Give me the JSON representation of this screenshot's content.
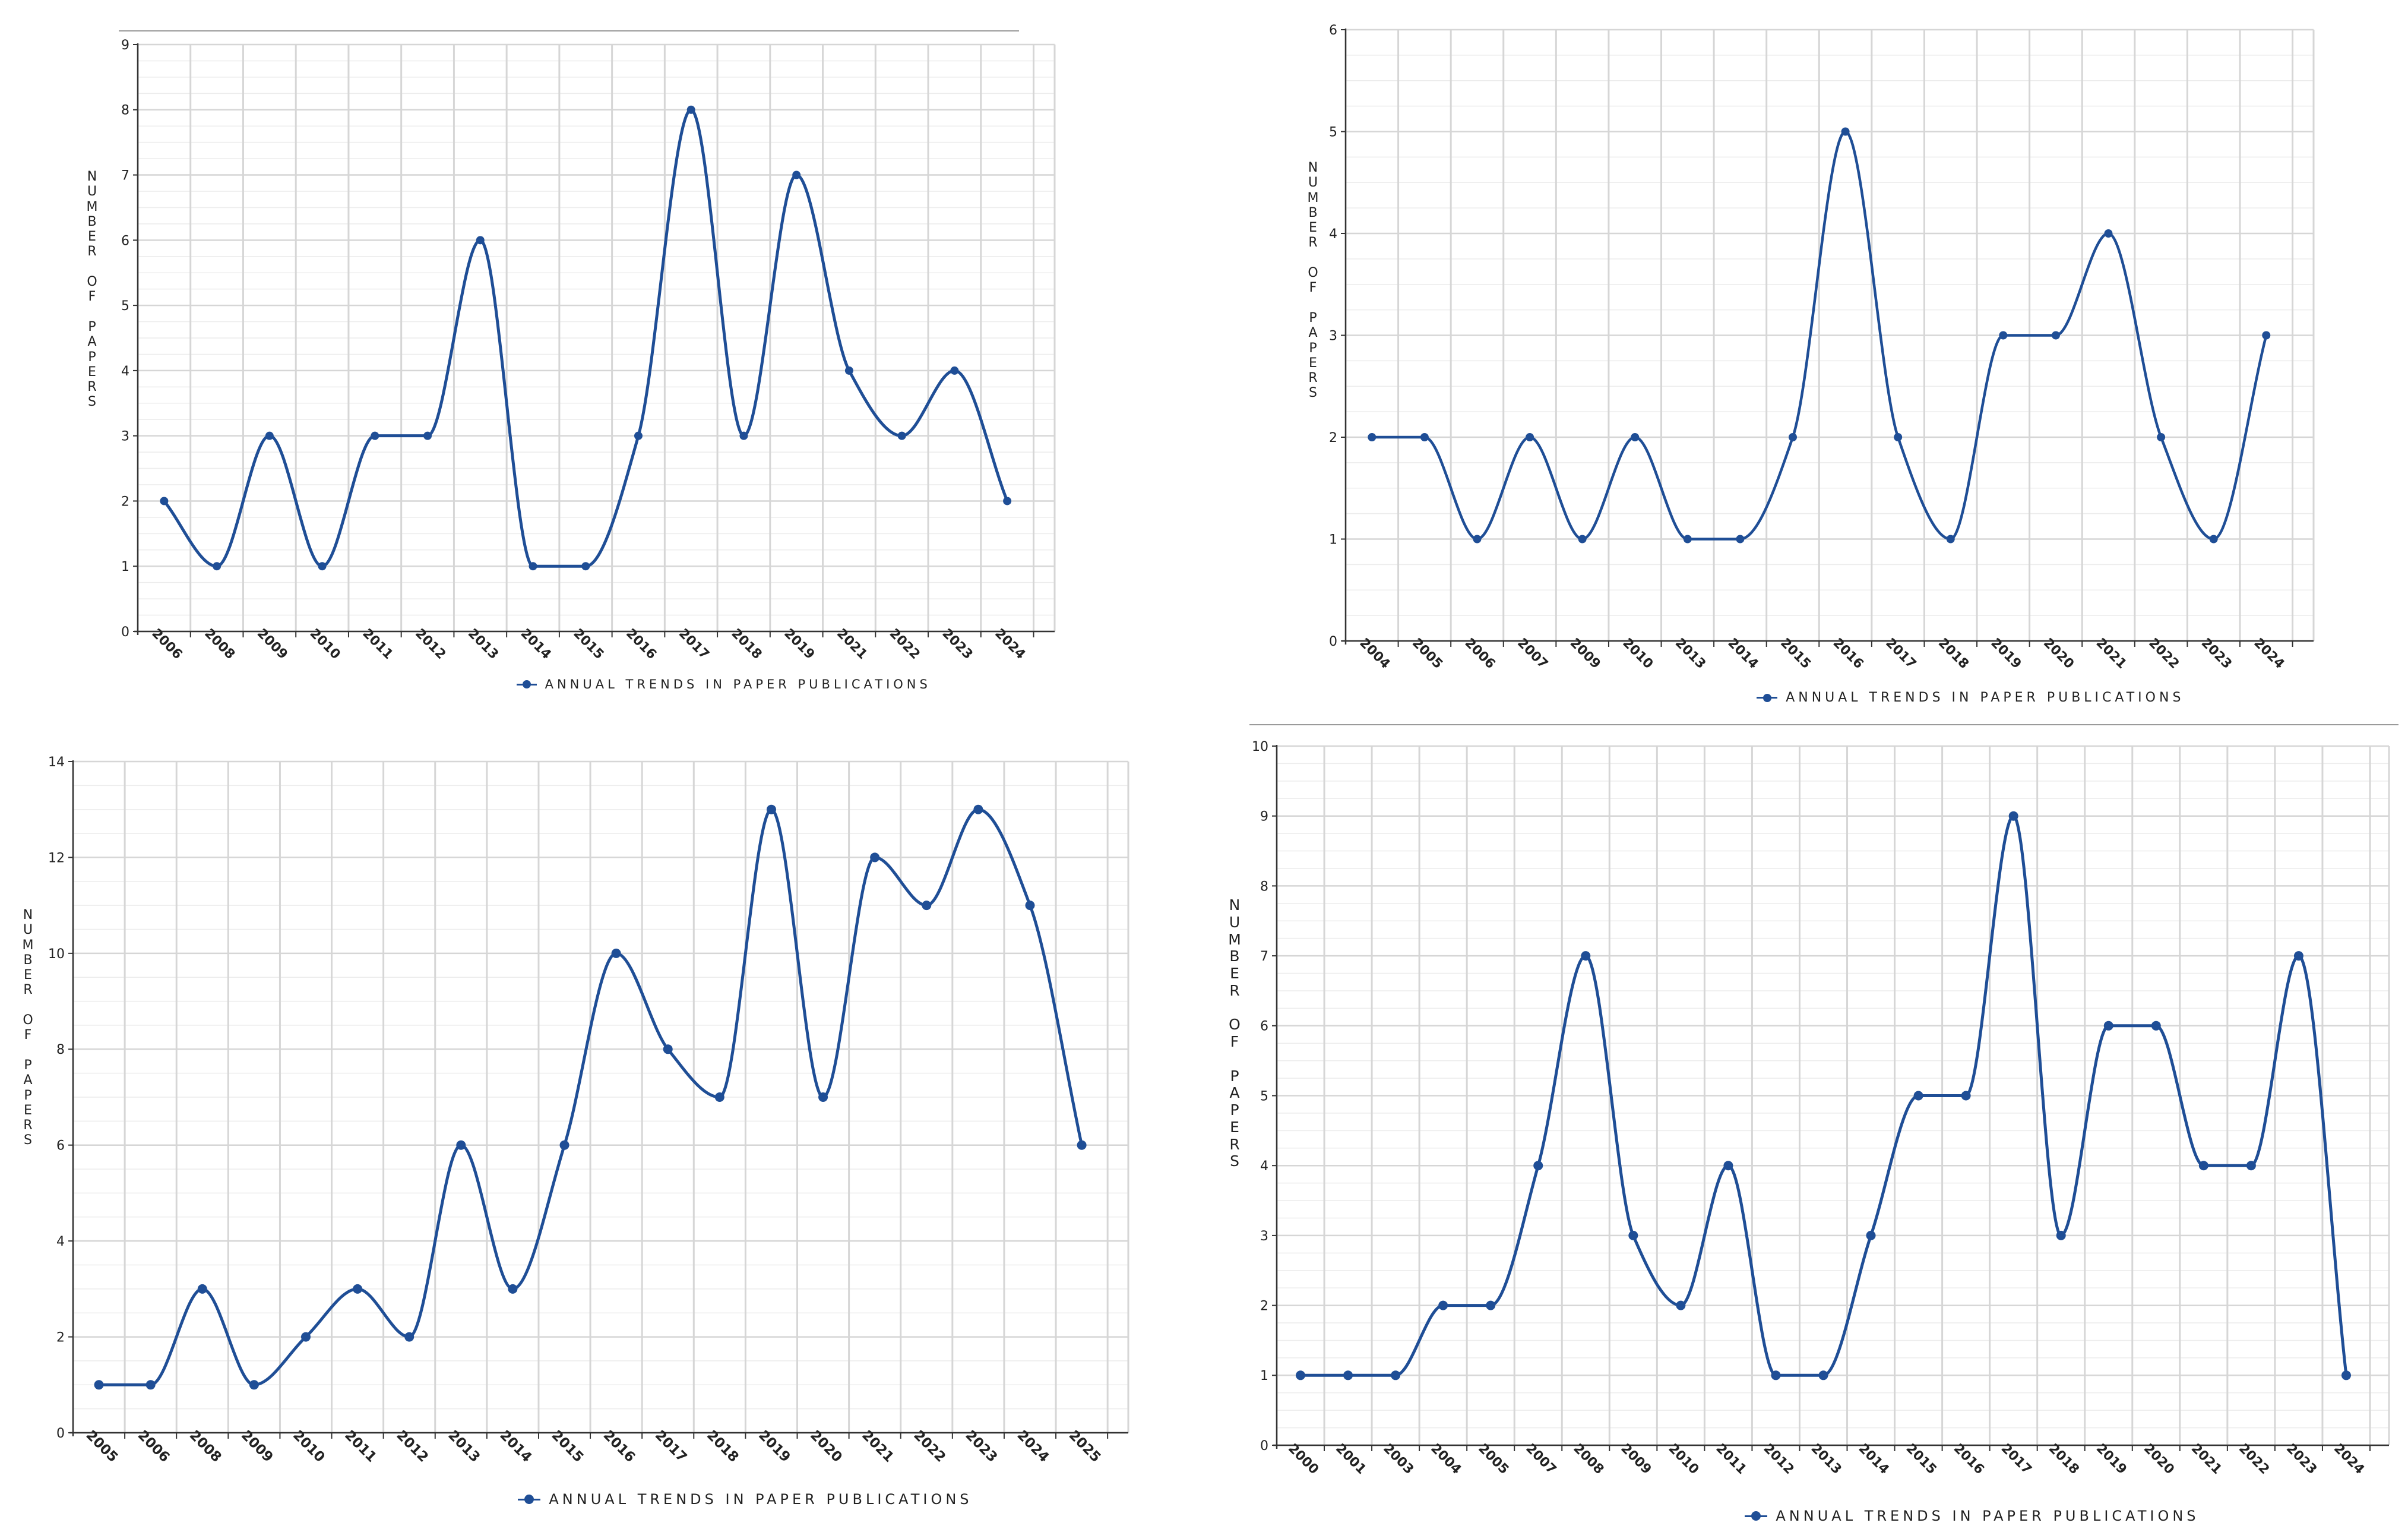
{
  "style": {
    "line_color": "#1f4e96",
    "grid_color": "#d6d6d6",
    "axis_color": "#333333",
    "text_color": "#222222"
  },
  "chart_data": [
    {
      "type": "line",
      "smooth": true,
      "categories": [
        "2006",
        "2008",
        "2009",
        "2010",
        "2011",
        "2012",
        "2013",
        "2014",
        "2015",
        "2016",
        "2017",
        "2018",
        "2019",
        "2021",
        "2022",
        "2023",
        "2024"
      ],
      "values": [
        2,
        1,
        3,
        1,
        3,
        3,
        6,
        1,
        1,
        3,
        8,
        3,
        7,
        4,
        3,
        4,
        2
      ],
      "ylabel": "NUMBER OF PAPERS",
      "legend": "ANNUAL TRENDS IN PAPER PUBLICATIONS",
      "ylim": [
        0,
        9
      ],
      "ytick_step": 1,
      "grid": true
    },
    {
      "type": "line",
      "smooth": true,
      "categories": [
        "2004",
        "2005",
        "2006",
        "2007",
        "2009",
        "2010",
        "2013",
        "2014",
        "2015",
        "2016",
        "2017",
        "2018",
        "2019",
        "2020",
        "2021",
        "2022",
        "2023",
        "2024"
      ],
      "values": [
        2,
        2,
        1,
        2,
        1,
        2,
        1,
        1,
        2,
        5,
        2,
        1,
        3,
        3,
        4,
        2,
        1,
        3
      ],
      "ylabel": "NUMBER OF PAPERS",
      "legend": "ANNUAL TRENDS IN PAPER PUBLICATIONS",
      "ylim": [
        0,
        6
      ],
      "ytick_step": 1,
      "grid": true
    },
    {
      "type": "line",
      "smooth": true,
      "categories": [
        "2005",
        "2006",
        "2008",
        "2009",
        "2010",
        "2011",
        "2012",
        "2013",
        "2014",
        "2015",
        "2016",
        "2017",
        "2018",
        "2019",
        "2020",
        "2021",
        "2022",
        "2023",
        "2024",
        "2025"
      ],
      "values": [
        1,
        1,
        3,
        1,
        2,
        3,
        2,
        6,
        3,
        6,
        10,
        8,
        7,
        13,
        7,
        12,
        11,
        13,
        11,
        6
      ],
      "ylabel": "NUMBER OF PAPERS",
      "legend": "ANNUAL TRENDS IN PAPER PUBLICATIONS",
      "ylim": [
        0,
        14
      ],
      "ytick_step": 2,
      "grid": true
    },
    {
      "type": "line",
      "smooth": true,
      "categories": [
        "2000",
        "2001",
        "2003",
        "2004",
        "2005",
        "2007",
        "2008",
        "2009",
        "2010",
        "2011",
        "2012",
        "2013",
        "2014",
        "2015",
        "2016",
        "2017",
        "2018",
        "2019",
        "2020",
        "2021",
        "2022",
        "2023",
        "2024"
      ],
      "values": [
        1,
        1,
        1,
        2,
        2,
        4,
        7,
        3,
        2,
        4,
        1,
        1,
        3,
        5,
        5,
        9,
        3,
        6,
        6,
        4,
        4,
        7,
        1
      ],
      "ylabel": "NUMBER OF PAPERS",
      "legend": "ANNUAL TRENDS IN PAPER PUBLICATIONS",
      "ylim": [
        0,
        10
      ],
      "ytick_step": 1,
      "grid": true
    }
  ]
}
